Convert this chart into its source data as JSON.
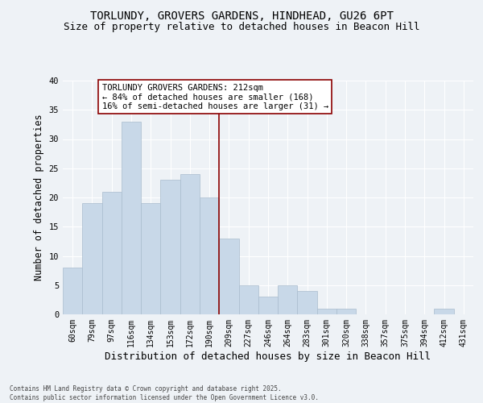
{
  "title1": "TORLUNDY, GROVERS GARDENS, HINDHEAD, GU26 6PT",
  "title2": "Size of property relative to detached houses in Beacon Hill",
  "xlabel": "Distribution of detached houses by size in Beacon Hill",
  "ylabel": "Number of detached properties",
  "categories": [
    "60sqm",
    "79sqm",
    "97sqm",
    "116sqm",
    "134sqm",
    "153sqm",
    "172sqm",
    "190sqm",
    "209sqm",
    "227sqm",
    "246sqm",
    "264sqm",
    "283sqm",
    "301sqm",
    "320sqm",
    "338sqm",
    "357sqm",
    "375sqm",
    "394sqm",
    "412sqm",
    "431sqm"
  ],
  "values": [
    8,
    19,
    21,
    33,
    19,
    23,
    24,
    20,
    13,
    5,
    3,
    5,
    4,
    1,
    1,
    0,
    0,
    0,
    0,
    1,
    0
  ],
  "bar_color": "#c8d8e8",
  "bar_edgecolor": "#aabcce",
  "vline_index": 8,
  "vline_color": "#8b0000",
  "annotation_text": "TORLUNDY GROVERS GARDENS: 212sqm\n← 84% of detached houses are smaller (168)\n16% of semi-detached houses are larger (31) →",
  "annotation_box_color": "#ffffff",
  "annotation_box_edgecolor": "#8b0000",
  "ylim": [
    0,
    40
  ],
  "yticks": [
    0,
    5,
    10,
    15,
    20,
    25,
    30,
    35,
    40
  ],
  "footnote": "Contains HM Land Registry data © Crown copyright and database right 2025.\nContains public sector information licensed under the Open Government Licence v3.0.",
  "background_color": "#eef2f6",
  "grid_color": "#ffffff",
  "title_fontsize": 10,
  "subtitle_fontsize": 9,
  "tick_fontsize": 7,
  "ylabel_fontsize": 8.5,
  "xlabel_fontsize": 9,
  "annotation_fontsize": 7.5
}
